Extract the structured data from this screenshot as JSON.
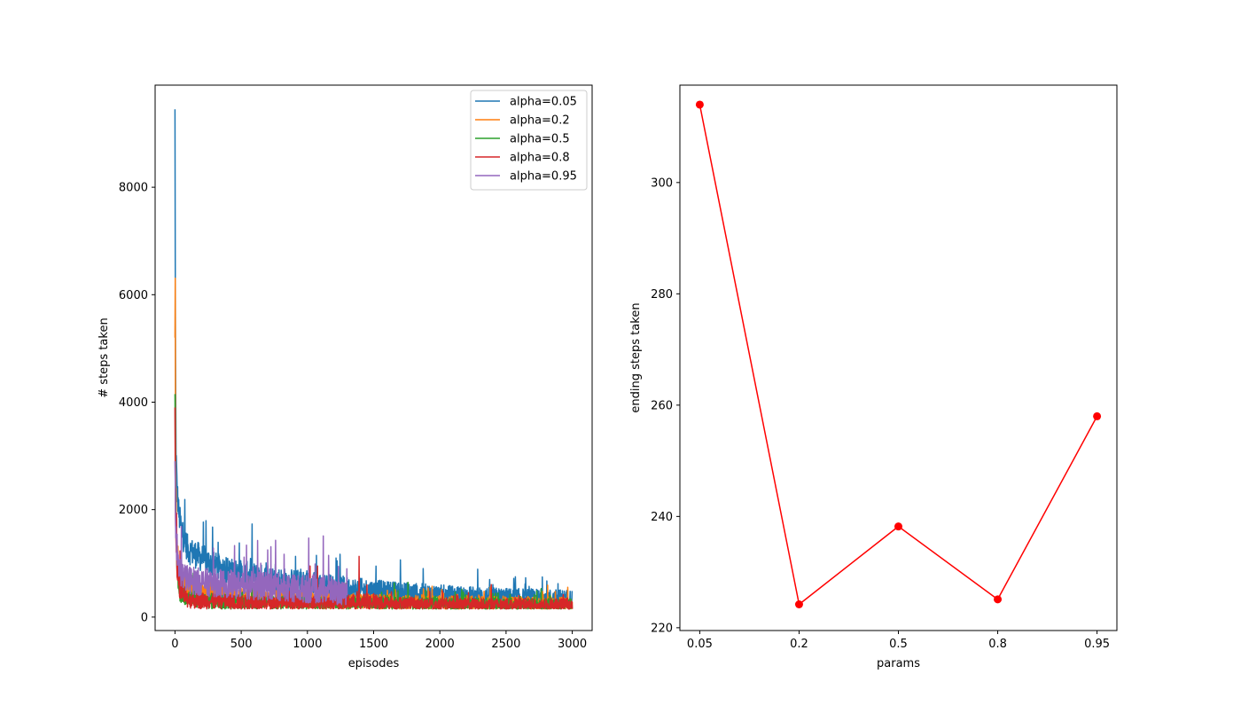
{
  "chart_data": [
    {
      "type": "line",
      "xlabel": "episodes",
      "ylabel": "# steps taken",
      "xlim": [
        -150,
        3150
      ],
      "ylim": [
        -250,
        9900
      ],
      "xticks": [
        0,
        500,
        1000,
        1500,
        2000,
        2500,
        3000
      ],
      "yticks": [
        0,
        2000,
        4000,
        6000,
        8000
      ],
      "legend_position": "top-right",
      "series": [
        {
          "name": "alpha=0.05",
          "color": "#1f77b4",
          "summary": {
            "start": 9450,
            "episodes": 3000
          },
          "points": [
            [
              0,
              9450
            ],
            [
              3,
              5200
            ],
            [
              8,
              3100
            ],
            [
              15,
              2400
            ],
            [
              30,
              1900
            ],
            [
              60,
              1500
            ],
            [
              100,
              1250
            ],
            [
              200,
              1100
            ],
            [
              300,
              950
            ],
            [
              400,
              850
            ],
            [
              500,
              800
            ],
            [
              700,
              700
            ],
            [
              1000,
              600
            ],
            [
              1300,
              500
            ],
            [
              1600,
              450
            ],
            [
              2000,
              400
            ],
            [
              2500,
              360
            ],
            [
              3000,
              340
            ]
          ],
          "spikes": []
        },
        {
          "name": "alpha=0.2",
          "color": "#ff7f0e",
          "summary": {
            "start": 5200,
            "episodes": 3000
          },
          "points": [
            [
              0,
              5200
            ],
            [
              5,
              2500
            ],
            [
              15,
              1300
            ],
            [
              30,
              800
            ],
            [
              60,
              600
            ],
            [
              100,
              500
            ],
            [
              200,
              420
            ],
            [
              400,
              380
            ],
            [
              700,
              340
            ],
            [
              1000,
              310
            ],
            [
              1500,
              290
            ],
            [
              2000,
              270
            ],
            [
              2500,
              260
            ],
            [
              3000,
              250
            ]
          ],
          "spikes": []
        },
        {
          "name": "alpha=0.5",
          "color": "#2ca02c",
          "summary": {
            "start": 4150,
            "episodes": 3000
          },
          "points": [
            [
              0,
              4150
            ],
            [
              5,
              1800
            ],
            [
              15,
              900
            ],
            [
              40,
              500
            ],
            [
              100,
              350
            ],
            [
              300,
              290
            ],
            [
              600,
              270
            ],
            [
              1000,
              260
            ],
            [
              1500,
              250
            ],
            [
              2000,
              240
            ],
            [
              2500,
              235
            ],
            [
              3000,
              230
            ]
          ],
          "spikes": []
        },
        {
          "name": "alpha=0.8",
          "color": "#d62728",
          "summary": {
            "start": 3900,
            "episodes": 3000
          },
          "points": [
            [
              0,
              3900
            ],
            [
              5,
              1600
            ],
            [
              15,
              800
            ],
            [
              40,
              450
            ],
            [
              100,
              330
            ],
            [
              300,
              290
            ],
            [
              600,
              270
            ],
            [
              1000,
              260
            ],
            [
              1350,
              280
            ],
            [
              1500,
              300
            ],
            [
              1550,
              260
            ],
            [
              2000,
              240
            ],
            [
              2500,
              230
            ],
            [
              3000,
              230
            ]
          ],
          "spikes": [
            [
              1020,
              950
            ],
            [
              1075,
              950
            ],
            [
              1390,
              1130
            ],
            [
              1450,
              600
            ]
          ]
        },
        {
          "name": "alpha=0.95",
          "color": "#9467bd",
          "summary": {
            "start": 2900,
            "episodes": 1300
          },
          "points": [
            [
              0,
              2900
            ],
            [
              5,
              1600
            ],
            [
              20,
              1000
            ],
            [
              50,
              800
            ],
            [
              100,
              700
            ],
            [
              200,
              650
            ],
            [
              400,
              620
            ],
            [
              600,
              580
            ],
            [
              800,
              560
            ],
            [
              1000,
              520
            ],
            [
              1200,
              480
            ],
            [
              1300,
              420
            ]
          ],
          "spikes": [
            [
              450,
              1330
            ],
            [
              540,
              1340
            ],
            [
              700,
              1250
            ],
            [
              760,
              1430
            ],
            [
              1010,
              1470
            ],
            [
              1120,
              1510
            ],
            [
              1160,
              1150
            ]
          ]
        }
      ]
    },
    {
      "type": "line",
      "xlabel": "params",
      "ylabel": "ending steps taken",
      "categories": [
        "0.05",
        "0.2",
        "0.5",
        "0.8",
        "0.95"
      ],
      "values": [
        314,
        224.2,
        238.2,
        225.1,
        258
      ],
      "ylim": [
        219.5,
        317.5
      ],
      "yticks": [
        220,
        240,
        260,
        280,
        300
      ],
      "color": "#ff0000",
      "marker": "circle"
    }
  ]
}
